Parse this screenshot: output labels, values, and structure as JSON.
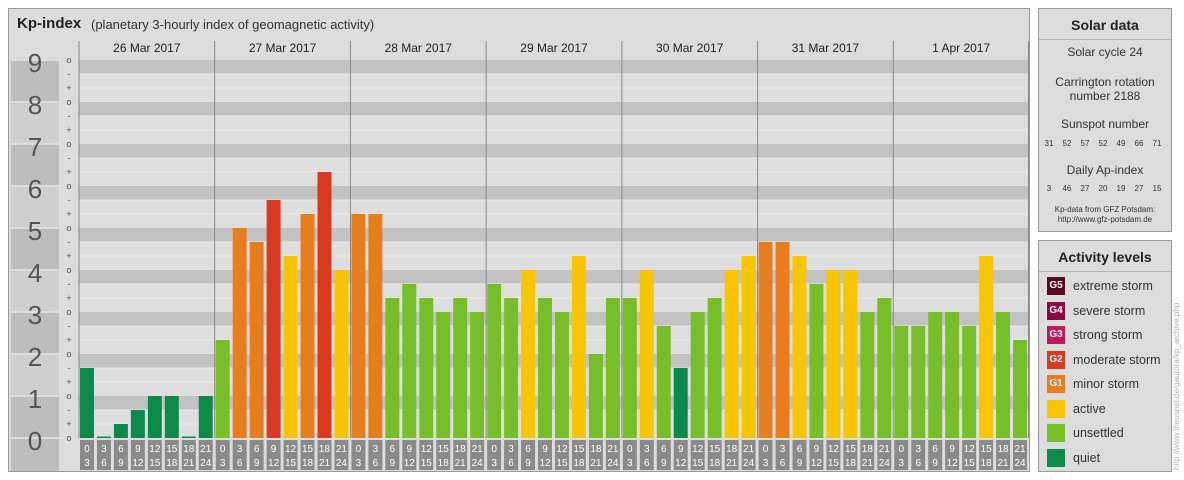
{
  "header": {
    "title": "Kp-index",
    "subtitle": "(planetary 3-hourly index of geomagnetic activity)"
  },
  "chart_data": {
    "type": "bar",
    "ylim": [
      0,
      9
    ],
    "y_ticks": [
      "0",
      "1",
      "2",
      "3",
      "4",
      "5",
      "6",
      "7",
      "8",
      "9"
    ],
    "minor_ticks": [
      "-",
      "o",
      "+"
    ],
    "days": [
      "26 Mar 2017",
      "27 Mar 2017",
      "28 Mar 2017",
      "29 Mar 2017",
      "30 Mar 2017",
      "31 Mar 2017",
      "1 Apr 2017"
    ],
    "interval_labels": [
      [
        "0",
        "3"
      ],
      [
        "3",
        "6"
      ],
      [
        "6",
        "9"
      ],
      [
        "9",
        "12"
      ],
      [
        "12",
        "15"
      ],
      [
        "15",
        "18"
      ],
      [
        "18",
        "21"
      ],
      [
        "21",
        "24"
      ]
    ],
    "values": [
      1.667,
      0.0,
      0.333,
      0.667,
      1.0,
      1.0,
      0.0,
      1.0,
      2.333,
      5.0,
      4.667,
      5.667,
      4.333,
      5.333,
      6.333,
      4.0,
      5.333,
      5.333,
      3.333,
      3.667,
      3.333,
      3.0,
      3.333,
      3.0,
      3.667,
      3.333,
      4.0,
      3.333,
      3.0,
      4.333,
      2.0,
      3.333,
      3.333,
      4.0,
      2.667,
      1.667,
      3.0,
      3.333,
      4.0,
      4.333,
      4.667,
      4.667,
      4.333,
      3.667,
      4.0,
      4.0,
      3.0,
      3.333,
      2.667,
      2.667,
      3.0,
      3.0,
      2.667,
      4.333,
      3.0,
      2.333
    ]
  },
  "solar": {
    "title": "Solar data",
    "cycle": "Solar cycle 24",
    "carrington_line1": "Carrington rotation",
    "carrington_line2": "number 2188",
    "sunspot_title": "Sunspot number",
    "sunspot_values": [
      "31",
      "52",
      "57",
      "52",
      "49",
      "66",
      "71"
    ],
    "ap_title": "Daily Ap-index",
    "ap_values": [
      "3",
      "46",
      "27",
      "20",
      "19",
      "27",
      "15"
    ],
    "source_line1": "Kp-data from GFZ Potsdam:",
    "source_line2": "http://www.gfz-potsdam.de"
  },
  "levels": {
    "title": "Activity levels",
    "items": [
      {
        "badge": "G5",
        "label": "extreme storm",
        "color": "#5a0a20"
      },
      {
        "badge": "G4",
        "label": "severe storm",
        "color": "#8b0c43"
      },
      {
        "badge": "G3",
        "label": "strong storm",
        "color": "#c2185b"
      },
      {
        "badge": "G2",
        "label": "moderate storm",
        "color": "#d93a1f"
      },
      {
        "badge": "G1",
        "label": "minor storm",
        "color": "#e87d1e"
      },
      {
        "badge": "",
        "label": "active",
        "color": "#f7c600"
      },
      {
        "badge": "",
        "label": "unsettled",
        "color": "#77bf29"
      },
      {
        "badge": "",
        "label": "quiet",
        "color": "#0b8a4a"
      }
    ]
  },
  "credit": "http://www.theusnet.de/gaurora/kp_archive.php"
}
